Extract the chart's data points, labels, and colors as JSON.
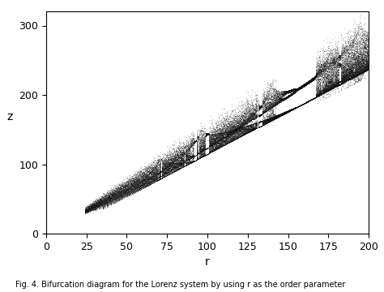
{
  "title": "",
  "xlabel": "r",
  "ylabel": "z",
  "xlim": [
    0,
    200
  ],
  "ylim": [
    0,
    320
  ],
  "xticks": [
    0,
    25,
    50,
    75,
    100,
    125,
    150,
    175,
    200
  ],
  "yticks": [
    0,
    100,
    200,
    300
  ],
  "r_start": 24,
  "r_end": 200,
  "r_steps": 350,
  "sigma": 10.0,
  "b": 2.6666666666666665,
  "dt": 0.02,
  "n_transient": 5000,
  "n_sample": 3000,
  "point_color": "#111111",
  "point_size": 0.25,
  "point_alpha": 0.35,
  "fig_caption": "Fig. 4. Bifurcation diagram for the Lorenz system by using r as the order parameter",
  "background_color": "#ffffff",
  "figsize": [
    4.74,
    3.6
  ],
  "dpi": 100
}
